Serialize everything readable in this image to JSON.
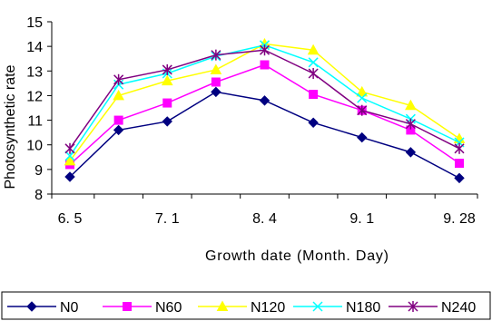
{
  "chart_data": {
    "type": "line",
    "ylabel": "Photosynthetic rate",
    "xlabel": "Growth date (Month. Day)",
    "x_ticks": [
      "6. 5",
      "7. 1",
      "8. 4",
      "9. 1",
      "9. 28"
    ],
    "y_ticks": [
      "8",
      "9",
      "10",
      "11",
      "12",
      "13",
      "14",
      "15"
    ],
    "ylim": [
      8,
      15
    ],
    "grid": false,
    "legend_position": "bottom",
    "x_points": 9,
    "series": [
      {
        "name": "N0",
        "color": "#000080",
        "marker": "diamond",
        "values": [
          8.7,
          10.6,
          10.95,
          12.15,
          11.8,
          10.9,
          10.3,
          9.7,
          8.65
        ]
      },
      {
        "name": "N60",
        "color": "#FF00FF",
        "marker": "square",
        "values": [
          9.2,
          11.0,
          11.7,
          12.55,
          13.25,
          12.05,
          11.4,
          10.6,
          9.25
        ]
      },
      {
        "name": "N120",
        "color": "#FFFF00",
        "marker": "triangle",
        "values": [
          9.35,
          12.0,
          12.6,
          13.05,
          14.1,
          13.85,
          12.15,
          11.6,
          10.25
        ]
      },
      {
        "name": "N180",
        "color": "#00FFFF",
        "marker": "x",
        "values": [
          9.55,
          12.45,
          12.9,
          13.6,
          14.05,
          13.35,
          11.9,
          11.05,
          10.1
        ]
      },
      {
        "name": "N240",
        "color": "#800080",
        "marker": "star",
        "values": [
          9.85,
          12.65,
          13.05,
          13.65,
          13.85,
          12.9,
          11.4,
          10.85,
          9.85
        ]
      }
    ]
  }
}
